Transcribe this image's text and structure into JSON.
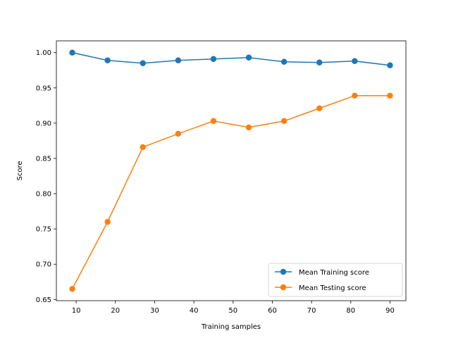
{
  "chart_data": {
    "type": "line",
    "title": "",
    "xlabel": "Training samples",
    "ylabel": "Score",
    "xlim": [
      4.95,
      94.05
    ],
    "ylim": [
      0.6483,
      1.0167
    ],
    "xticks": [
      10,
      20,
      30,
      40,
      50,
      60,
      70,
      80,
      90
    ],
    "yticks": [
      0.65,
      0.7,
      0.75,
      0.8,
      0.85,
      0.9,
      0.95,
      1.0
    ],
    "ytick_labels": [
      "0.65",
      "0.70",
      "0.75",
      "0.80",
      "0.85",
      "0.90",
      "0.95",
      "1.00"
    ],
    "grid": false,
    "legend_position": "lower-right",
    "x": [
      9,
      18,
      27,
      36,
      45,
      54,
      63,
      72,
      81,
      90
    ],
    "series": [
      {
        "name": "Mean Training score",
        "color": "#1f77b4",
        "marker": "circle",
        "values": [
          1.0,
          0.989,
          0.985,
          0.989,
          0.991,
          0.993,
          0.987,
          0.986,
          0.988,
          0.982
        ]
      },
      {
        "name": "Mean Testing score",
        "color": "#ff7f0e",
        "marker": "circle",
        "values": [
          0.665,
          0.76,
          0.866,
          0.885,
          0.903,
          0.894,
          0.903,
          0.921,
          0.939,
          0.939
        ]
      }
    ]
  }
}
